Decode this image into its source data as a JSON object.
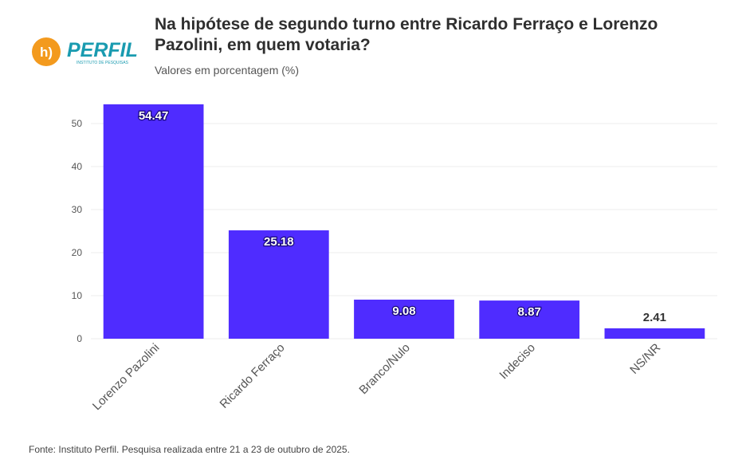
{
  "header": {
    "title": "Na hipótese de segundo turno entre Ricardo Ferraço e Lorenzo Pazolini, em quem votaria?",
    "subtitle": "Valores em porcentagem (%)"
  },
  "logo": {
    "icon_text": "h)",
    "brand_text": "PERFIL",
    "tagline": "INSTITUTO DE PESQUISAS",
    "icon_color": "#f39a1e",
    "brand_color": "#1a9bb0"
  },
  "footer": {
    "source": "Fonte: Instituto Perfil. Pesquisa realizada entre 21 a 23 de outubro de 2025."
  },
  "chart_data": {
    "type": "bar",
    "categories": [
      "Lorenzo Pazolini",
      "Ricardo Ferraço",
      "Branco/Nulo",
      "Indeciso",
      "NS/NR"
    ],
    "values": [
      54.47,
      25.18,
      9.08,
      8.87,
      2.41
    ],
    "value_labels": [
      "54.47",
      "25.18",
      "9.08",
      "8.87",
      "2.41"
    ],
    "yticks": [
      0,
      10,
      20,
      30,
      40,
      50
    ],
    "ylim": [
      0,
      55
    ],
    "xlabel": "",
    "ylabel": "",
    "grid": true,
    "bar_color": "#4f2cff"
  }
}
